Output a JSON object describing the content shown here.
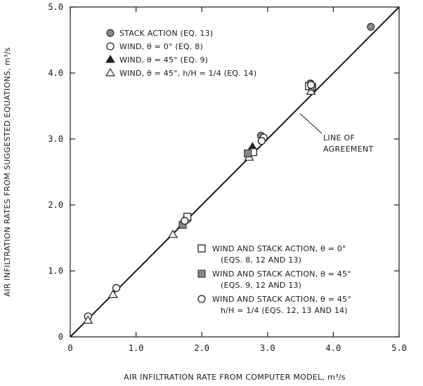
{
  "chart_data": {
    "type": "scatter",
    "title": "",
    "xlabel": "AIR INFILTRATION RATE FROM COMPUTER MODEL, m³/s",
    "ylabel": "AIR INFILTRATION RATES FROM SUGGESTED EQUATIONS, m³/s",
    "xlim": [
      0,
      5.0
    ],
    "ylim": [
      0,
      5.0
    ],
    "x_ticks": [
      "0",
      "1.0",
      "2.0",
      "3.0",
      "4.0",
      "5.0"
    ],
    "y_ticks": [
      "0",
      "1.0",
      "2.0",
      "3.0",
      "4.0",
      "5.0"
    ],
    "grid": false,
    "reference_line": {
      "label_line1": "LINE OF",
      "label_line2": "AGREEMENT",
      "from": [
        0,
        0
      ],
      "to": [
        5.0,
        5.0
      ]
    },
    "legend_top": [
      {
        "marker": "filled-circle",
        "label": "STACK ACTION (EQ. 13)"
      },
      {
        "marker": "open-circle",
        "label": "WIND, θ = 0° (EQ. 8)"
      },
      {
        "marker": "filled-triangle",
        "label": "WIND, θ = 45° (EQ. 9)"
      },
      {
        "marker": "open-triangle",
        "label": "WIND, θ = 45°, h/H = 1/4 (EQ. 14)"
      }
    ],
    "legend_bottom": [
      {
        "marker": "open-square",
        "line1": "WIND AND STACK ACTION, θ = 0°",
        "line2": "(EQS. 8, 12 AND 13)"
      },
      {
        "marker": "hatched-square",
        "line1": "WIND AND STACK ACTION, θ = 45°",
        "line2": "(EQS. 9, 12 AND 13)"
      },
      {
        "marker": "open-circle",
        "line1": "WIND AND STACK ACTION, θ = 45°",
        "line2": "h/H = 1/4 (EQS. 12, 13 AND 14)"
      }
    ],
    "series": [
      {
        "marker": "filled-circle",
        "points": [
          [
            4.57,
            4.7
          ],
          [
            2.9,
            3.05
          ],
          [
            1.77,
            1.8
          ]
        ]
      },
      {
        "marker": "open-circle",
        "points": [
          [
            0.27,
            0.31
          ],
          [
            0.7,
            0.74
          ],
          [
            1.78,
            1.78
          ],
          [
            2.94,
            3.02
          ],
          [
            3.65,
            3.84
          ]
        ]
      },
      {
        "marker": "filled-triangle",
        "points": [
          [
            2.77,
            2.88
          ],
          [
            1.7,
            1.69
          ]
        ]
      },
      {
        "marker": "open-triangle",
        "points": [
          [
            0.27,
            0.25
          ],
          [
            0.65,
            0.64
          ],
          [
            1.56,
            1.55
          ],
          [
            2.72,
            2.72
          ],
          [
            3.66,
            3.72
          ]
        ]
      },
      {
        "marker": "open-square",
        "points": [
          [
            1.78,
            1.82
          ],
          [
            2.78,
            2.8
          ],
          [
            3.63,
            3.8
          ]
        ]
      },
      {
        "marker": "hatched-square",
        "points": [
          [
            1.71,
            1.7
          ],
          [
            2.7,
            2.78
          ],
          [
            3.68,
            3.79
          ]
        ]
      },
      {
        "marker": "open-circle-alt",
        "points": [
          [
            1.74,
            1.76
          ],
          [
            2.91,
            2.97
          ],
          [
            3.66,
            3.82
          ]
        ]
      }
    ]
  }
}
